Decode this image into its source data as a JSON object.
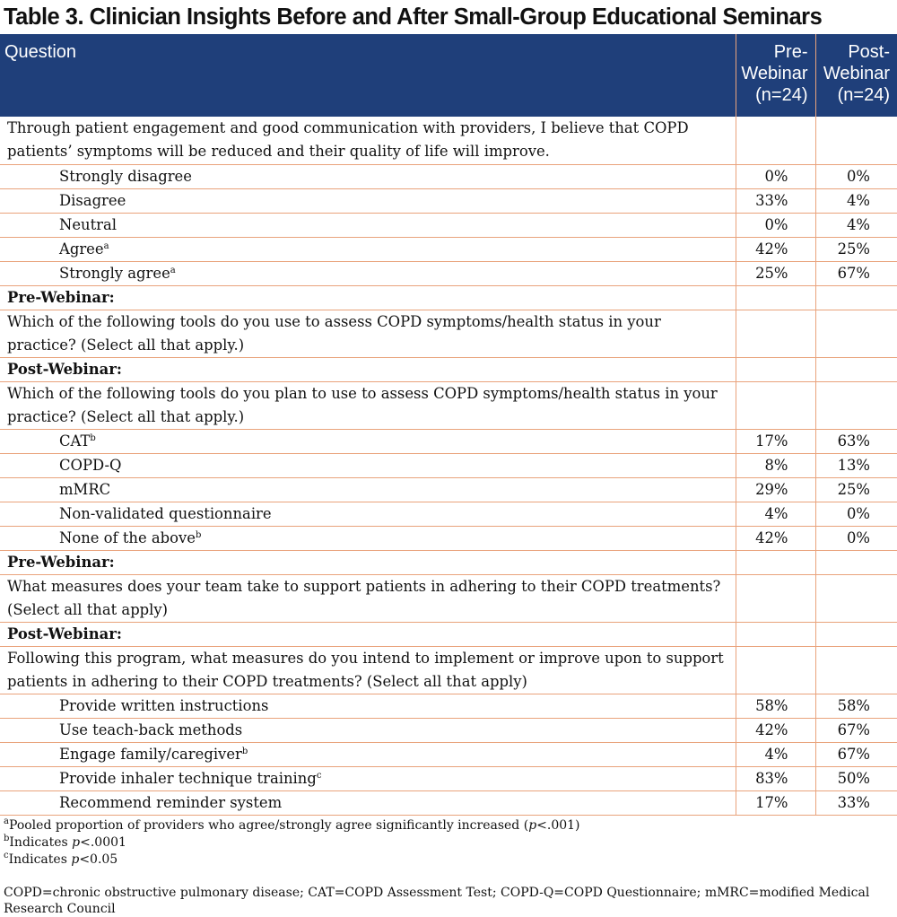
{
  "title": "Table 3.  Clinician Insights Before and After Small-Group Educational Seminars",
  "header": {
    "question": "Question",
    "pre": [
      "Pre-",
      "Webinar",
      "(n=24)"
    ],
    "post": [
      "Post-",
      "Webinar",
      "(n=24)"
    ]
  },
  "rows": [
    {
      "type": "question",
      "text": "Through patient engagement and good communication with providers, I believe that COPD patients’ symptoms will be reduced and their quality of life will improve."
    },
    {
      "type": "option",
      "label": "Strongly disagree",
      "sup": "",
      "pre": "0%",
      "post": "0%"
    },
    {
      "type": "option",
      "label": "Disagree",
      "sup": "",
      "pre": "33%",
      "post": "4%"
    },
    {
      "type": "option",
      "label": "Neutral",
      "sup": "",
      "pre": "0%",
      "post": "4%"
    },
    {
      "type": "option",
      "label": "Agree",
      "sup": "a",
      "pre": "42%",
      "post": "25%"
    },
    {
      "type": "option",
      "label": "Strongly agree",
      "sup": "a",
      "pre": "25%",
      "post": "67%"
    },
    {
      "type": "head",
      "text": "Pre-Webinar:"
    },
    {
      "type": "question",
      "text": "Which of the following tools do you use to assess COPD symptoms/health status in your practice? (Select all that apply.)"
    },
    {
      "type": "head",
      "text": "Post-Webinar:"
    },
    {
      "type": "question",
      "text": "Which of the following tools do you plan to use to assess COPD symptoms/health status in your practice? (Select all that apply.)"
    },
    {
      "type": "option",
      "label": "CAT",
      "sup": "b",
      "pre": "17%",
      "post": "63%"
    },
    {
      "type": "option",
      "label": "COPD-Q",
      "sup": "",
      "pre": "8%",
      "post": "13%"
    },
    {
      "type": "option",
      "label": "mMRC",
      "sup": "",
      "pre": "29%",
      "post": "25%"
    },
    {
      "type": "option",
      "label": "Non-validated questionnaire",
      "sup": "",
      "pre": "4%",
      "post": "0%"
    },
    {
      "type": "option",
      "label": "None of the above",
      "sup": "b",
      "pre": "42%",
      "post": "0%"
    },
    {
      "type": "head",
      "text": "Pre-Webinar:"
    },
    {
      "type": "question",
      "text": "What measures does your team take to support patients in adhering to their COPD treatments? (Select all that apply)"
    },
    {
      "type": "head",
      "text": "Post-Webinar:"
    },
    {
      "type": "question",
      "text": "Following this program, what measures do you intend to implement or improve upon to support patients in adhering to their COPD treatments? (Select all that apply)"
    },
    {
      "type": "option",
      "label": "Provide written instructions",
      "sup": "",
      "pre": "58%",
      "post": "58%"
    },
    {
      "type": "option",
      "label": "Use teach-back methods",
      "sup": "",
      "pre": "42%",
      "post": "67%"
    },
    {
      "type": "option",
      "label": "Engage family/caregiver",
      "sup": "b",
      "pre": "4%",
      "post": "67%"
    },
    {
      "type": "option",
      "label": "Provide inhaler technique training",
      "sup": "c",
      "pre": "83%",
      "post": "50%"
    },
    {
      "type": "option",
      "label": "Recommend reminder system",
      "sup": "",
      "pre": "17%",
      "post": "33%"
    }
  ],
  "footnotes": [
    {
      "sup": "a",
      "parts": [
        [
          "Pooled proportion of providers who agree/strongly agree significantly increased (",
          false
        ],
        [
          "p",
          true
        ],
        [
          "<.001)",
          false
        ]
      ]
    },
    {
      "sup": "b",
      "parts": [
        [
          "Indicates ",
          false
        ],
        [
          "p",
          true
        ],
        [
          "<.0001",
          false
        ]
      ]
    },
    {
      "sup": "c",
      "parts": [
        [
          "Indicates ",
          false
        ],
        [
          "p",
          true
        ],
        [
          "<0.05",
          false
        ]
      ]
    }
  ],
  "abbreviations": "COPD=chronic obstructive pulmonary disease; CAT=COPD Assessment Test; COPD-Q=COPD Questionnaire; mMRC=modified Medical Research Council"
}
